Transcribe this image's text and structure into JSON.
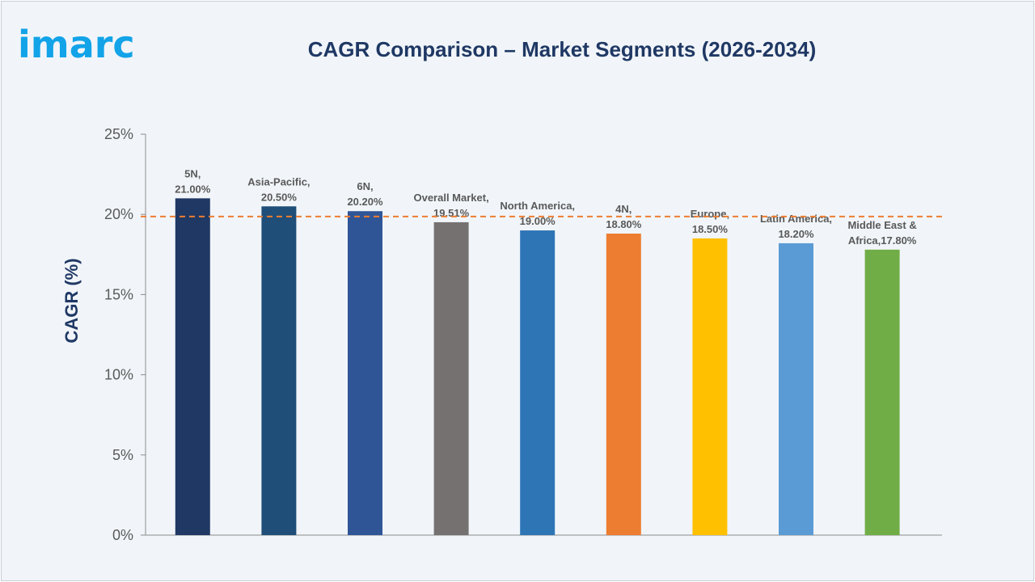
{
  "brand": {
    "logo_text": "imarc",
    "logo_color": "#12a3e8"
  },
  "chart_data": {
    "type": "bar",
    "title": "CAGR Comparison – Market Segments (2026-2034)",
    "xlabel": "",
    "ylabel": "CAGR (%)",
    "ylim": [
      0,
      25
    ],
    "yticks": [
      "0%",
      "5%",
      "10%",
      "15%",
      "20%",
      "25%"
    ],
    "ytick_values": [
      0,
      5,
      10,
      15,
      20,
      25
    ],
    "grid": false,
    "legend": "none",
    "categories": [
      "5N",
      "Asia-Pacific",
      "6N",
      "Overall Market",
      "North America",
      "4N",
      "Europe",
      "Latin America",
      "Middle East & Africa"
    ],
    "values": [
      21.0,
      20.5,
      20.2,
      19.51,
      19.0,
      18.8,
      18.5,
      18.2,
      17.8
    ],
    "colors": [
      "#1f3864",
      "#1f4e79",
      "#2f5597",
      "#767171",
      "#2e75b6",
      "#ed7d31",
      "#ffc000",
      "#5b9bd5",
      "#70ad47"
    ],
    "data_labels": [
      [
        "5N,",
        "21.00%"
      ],
      [
        "Asia-Pacific,",
        "20.50%"
      ],
      [
        "6N,",
        "20.20%"
      ],
      [
        "Overall Market,",
        "19.51%"
      ],
      [
        "North America,",
        "19.00%"
      ],
      [
        "4N,",
        "18.80%"
      ],
      [
        "Europe,",
        "18.50%"
      ],
      [
        "Latin America,",
        "18.20%"
      ],
      [
        "Middle East &",
        "Africa,17.80%"
      ]
    ],
    "reference_line": {
      "value": 19.51,
      "style": "dashed",
      "color": "#ed7d31"
    }
  }
}
